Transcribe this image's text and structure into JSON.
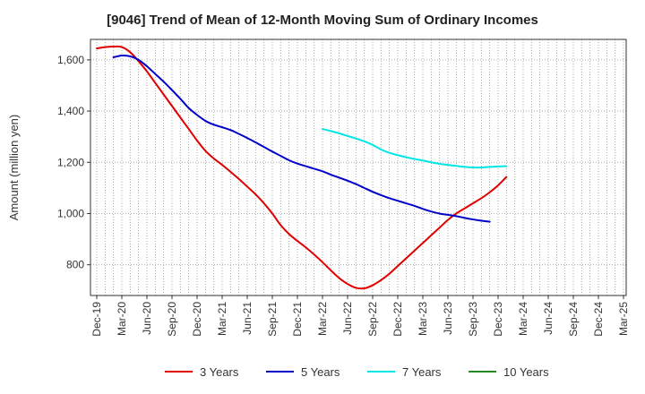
{
  "chart_data": {
    "type": "line",
    "title": "[9046]  Trend of Mean of 12-Month Moving Sum of Ordinary Incomes",
    "xlabel": "",
    "ylabel": "Amount (million yen)",
    "ylim": [
      680,
      1680
    ],
    "yticks": [
      800,
      1000,
      1200,
      1400,
      1600
    ],
    "ytick_labels": [
      "800",
      "1,000",
      "1,200",
      "1,400",
      "1,600"
    ],
    "x_start": "Dec-19",
    "x_months": 63,
    "xtick_labels": [
      "Dec-19",
      "Mar-20",
      "Jun-20",
      "Sep-20",
      "Dec-20",
      "Mar-21",
      "Jun-21",
      "Sep-21",
      "Dec-21",
      "Mar-22",
      "Jun-22",
      "Sep-22",
      "Dec-22",
      "Mar-23",
      "Jun-23",
      "Sep-23",
      "Dec-23",
      "Mar-24",
      "Jun-24",
      "Sep-24",
      "Dec-24",
      "Mar-25"
    ],
    "grid": true,
    "legend_position": "bottom",
    "series": [
      {
        "name": "3 Years",
        "color": "#e00000",
        "start_month": 0,
        "points": [
          [
            0,
            1645
          ],
          [
            1,
            1650
          ],
          [
            2,
            1652
          ],
          [
            3,
            1650
          ],
          [
            4,
            1630
          ],
          [
            5,
            1595
          ],
          [
            6,
            1555
          ],
          [
            7,
            1510
          ],
          [
            8,
            1465
          ],
          [
            9,
            1420
          ],
          [
            10,
            1375
          ],
          [
            11,
            1330
          ],
          [
            12,
            1285
          ],
          [
            13,
            1245
          ],
          [
            14,
            1215
          ],
          [
            15,
            1190
          ],
          [
            16,
            1163
          ],
          [
            17,
            1135
          ],
          [
            18,
            1105
          ],
          [
            19,
            1075
          ],
          [
            20,
            1040
          ],
          [
            21,
            1000
          ],
          [
            22,
            955
          ],
          [
            23,
            920
          ],
          [
            24,
            893
          ],
          [
            25,
            868
          ],
          [
            26,
            840
          ],
          [
            27,
            810
          ],
          [
            28,
            778
          ],
          [
            29,
            748
          ],
          [
            30,
            725
          ],
          [
            31,
            710
          ],
          [
            32,
            708
          ],
          [
            33,
            720
          ],
          [
            34,
            740
          ],
          [
            35,
            765
          ],
          [
            36,
            795
          ],
          [
            37,
            825
          ],
          [
            38,
            855
          ],
          [
            39,
            885
          ],
          [
            40,
            915
          ],
          [
            41,
            945
          ],
          [
            42,
            975
          ],
          [
            43,
            1000
          ],
          [
            44,
            1020
          ],
          [
            45,
            1040
          ],
          [
            46,
            1060
          ],
          [
            47,
            1083
          ],
          [
            48,
            1110
          ],
          [
            49,
            1143
          ]
        ]
      },
      {
        "name": "5 Years",
        "color": "#0000c8",
        "start_month": 2,
        "points": [
          [
            2,
            1610
          ],
          [
            3,
            1617
          ],
          [
            4,
            1614
          ],
          [
            5,
            1600
          ],
          [
            6,
            1575
          ],
          [
            7,
            1545
          ],
          [
            8,
            1515
          ],
          [
            9,
            1482
          ],
          [
            10,
            1448
          ],
          [
            11,
            1412
          ],
          [
            12,
            1385
          ],
          [
            13,
            1362
          ],
          [
            14,
            1347
          ],
          [
            15,
            1337
          ],
          [
            16,
            1326
          ],
          [
            17,
            1311
          ],
          [
            18,
            1295
          ],
          [
            19,
            1278
          ],
          [
            20,
            1260
          ],
          [
            21,
            1242
          ],
          [
            22,
            1225
          ],
          [
            23,
            1208
          ],
          [
            24,
            1195
          ],
          [
            25,
            1185
          ],
          [
            26,
            1175
          ],
          [
            27,
            1165
          ],
          [
            28,
            1152
          ],
          [
            29,
            1140
          ],
          [
            30,
            1128
          ],
          [
            31,
            1115
          ],
          [
            32,
            1100
          ],
          [
            33,
            1085
          ],
          [
            34,
            1072
          ],
          [
            35,
            1060
          ],
          [
            36,
            1050
          ],
          [
            37,
            1040
          ],
          [
            38,
            1030
          ],
          [
            39,
            1018
          ],
          [
            40,
            1008
          ],
          [
            41,
            1000
          ],
          [
            42,
            995
          ],
          [
            43,
            990
          ],
          [
            44,
            983
          ],
          [
            45,
            977
          ],
          [
            46,
            972
          ],
          [
            47,
            968
          ]
        ]
      },
      {
        "name": "7 Years",
        "color": "#00e6e6",
        "start_month": 27,
        "points": [
          [
            27,
            1330
          ],
          [
            28,
            1322
          ],
          [
            29,
            1313
          ],
          [
            30,
            1303
          ],
          [
            31,
            1293
          ],
          [
            32,
            1282
          ],
          [
            33,
            1268
          ],
          [
            34,
            1250
          ],
          [
            35,
            1237
          ],
          [
            36,
            1228
          ],
          [
            37,
            1220
          ],
          [
            38,
            1213
          ],
          [
            39,
            1207
          ],
          [
            40,
            1200
          ],
          [
            41,
            1194
          ],
          [
            42,
            1190
          ],
          [
            43,
            1186
          ],
          [
            44,
            1182
          ],
          [
            45,
            1180
          ],
          [
            46,
            1180
          ],
          [
            47,
            1182
          ],
          [
            48,
            1184
          ],
          [
            49,
            1185
          ]
        ]
      },
      {
        "name": "10 Years",
        "color": "#228b22",
        "start_month": null,
        "points": []
      }
    ]
  }
}
